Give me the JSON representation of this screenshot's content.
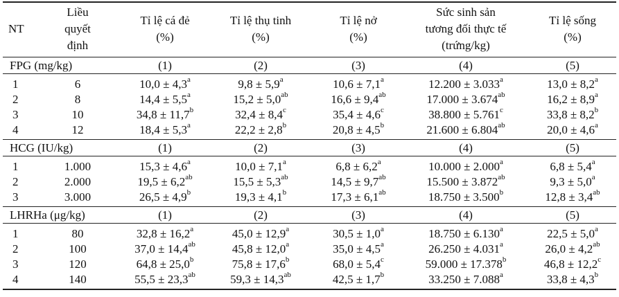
{
  "header": [
    [
      "NT"
    ],
    [
      "Liều",
      "quyết",
      "định"
    ],
    [
      "Tỉ lệ cá đẻ",
      "(%)"
    ],
    [
      "Tỉ lệ thụ tinh",
      "(%)"
    ],
    [
      "Tỉ lệ nở",
      "(%)"
    ],
    [
      "Sức sinh sản",
      "tương đối thực tế",
      "(trứng/kg)"
    ],
    [
      "Tỉ lệ sống",
      "(%)"
    ]
  ],
  "sections": [
    {
      "label": "FPG (mg/kg)",
      "columns": [
        "(1)",
        "(2)",
        "(3)",
        "(4)",
        "(5)"
      ],
      "rows": [
        [
          "1",
          "6",
          {
            "text": "10,0 ± 4,3",
            "sup": "a"
          },
          {
            "text": "9,8 ± 5,9",
            "sup": "a"
          },
          {
            "text": "10,6 ± 7,1",
            "sup": "a"
          },
          {
            "text": "12.200 ± 3.033",
            "sup": "a"
          },
          {
            "text": "13,0 ± 8,2",
            "sup": "a"
          }
        ],
        [
          "2",
          "8",
          {
            "text": "14,4 ± 5,5",
            "sup": "a"
          },
          {
            "text": "15,2 ± 5,0",
            "sup": "ab"
          },
          {
            "text": "16,6 ± 9,4",
            "sup": "ab"
          },
          {
            "text": "17.000 ± 3.674",
            "sup": "ab"
          },
          {
            "text": "16,2 ± 8,9",
            "sup": "a"
          }
        ],
        [
          "3",
          "10",
          {
            "text": "34,8 ± 11,7",
            "sup": "b"
          },
          {
            "text": "32,4 ± 8,4",
            "sup": "c"
          },
          {
            "text": "35,4 ± 4,6",
            "sup": "c"
          },
          {
            "text": "38.800 ± 5.761",
            "sup": "c"
          },
          {
            "text": "33,8 ± 8,2",
            "sup": "b"
          }
        ],
        [
          "4",
          "12",
          {
            "text": "18,4 ± 5,3",
            "sup": "a"
          },
          {
            "text": "22,2 ± 2,8",
            "sup": "b"
          },
          {
            "text": "20,8 ± 4,5",
            "sup": "b"
          },
          {
            "text": "21.600 ± 6.804",
            "sup": "ab"
          },
          {
            "text": "20,0 ± 4,6",
            "sup": "a"
          }
        ]
      ]
    },
    {
      "label": "HCG (IU/kg)",
      "columns": [
        "(1)",
        "(2)",
        "(3)",
        "(4)",
        "(5)"
      ],
      "rows": [
        [
          "1",
          "1.000",
          {
            "text": "15,3 ± 4,6",
            "sup": "a"
          },
          {
            "text": "10,0 ± 7,1",
            "sup": "a"
          },
          {
            "text": "6,8 ± 6,2",
            "sup": "a"
          },
          {
            "text": "10.000 ± 2.000",
            "sup": "a"
          },
          {
            "text": "6,8 ± 5,4",
            "sup": "a"
          }
        ],
        [
          "2",
          "2.000",
          {
            "text": "19,5 ± 6,2",
            "sup": "ab"
          },
          {
            "text": "15,5 ± 5,3",
            "sup": "ab"
          },
          {
            "text": "14,5 ± 9,7",
            "sup": "ab"
          },
          {
            "text": "15.500 ± 3.872",
            "sup": "ab"
          },
          {
            "text": "9,3 ± 5,0",
            "sup": "a"
          }
        ],
        [
          "3",
          "3.000",
          {
            "text": "26,5 ± 4,9",
            "sup": "b"
          },
          {
            "text": "19,3 ± 4,1",
            "sup": "b"
          },
          {
            "text": "17,3 ± 6,1",
            "sup": "ab"
          },
          {
            "text": "18.750 ± 3.500",
            "sup": "b"
          },
          {
            "text": "12,8 ± 3,4",
            "sup": "ab"
          }
        ]
      ]
    },
    {
      "label": "LHRHa (μg/kg)",
      "columns": [
        "(1)",
        "(2)",
        "(3)",
        "(4)",
        "(5)"
      ],
      "rows": [
        [
          "1",
          "80",
          {
            "text": "32,8 ± 16,2",
            "sup": "a"
          },
          {
            "text": "45,0 ± 12,9",
            "sup": "a"
          },
          {
            "text": "30,5 ± 1,0",
            "sup": "a"
          },
          {
            "text": "18.750 ± 6.130",
            "sup": "a"
          },
          {
            "text": "22,5 ± 5,0",
            "sup": "a"
          }
        ],
        [
          "2",
          "100",
          {
            "text": "37,0 ± 14,4",
            "sup": "ab"
          },
          {
            "text": "45,8 ± 12,0",
            "sup": "a"
          },
          {
            "text": "35,0 ± 4,5",
            "sup": "a"
          },
          {
            "text": "26.250 ± 4.031",
            "sup": "a"
          },
          {
            "text": "26,0 ± 4,2",
            "sup": "ab"
          }
        ],
        [
          "3",
          "120",
          {
            "text": "64,8 ± 25,0",
            "sup": "b"
          },
          {
            "text": "75,8 ± 17,6",
            "sup": "b"
          },
          {
            "text": "68,0 ± 5,4",
            "sup": "c"
          },
          {
            "text": "59.000 ± 17.378",
            "sup": "b"
          },
          {
            "text": "46,8 ± 12,2",
            "sup": "c"
          }
        ],
        [
          "4",
          "140",
          {
            "text": "55,5 ± 23,3",
            "sup": "ab"
          },
          {
            "text": "59,3 ± 14,3",
            "sup": "ab"
          },
          {
            "text": "42,5 ± 1,7",
            "sup": "b"
          },
          {
            "text": "33.250 ± 7.088",
            "sup": "a"
          },
          {
            "text": "33,8 ± 4,3",
            "sup": "b"
          }
        ]
      ]
    }
  ]
}
